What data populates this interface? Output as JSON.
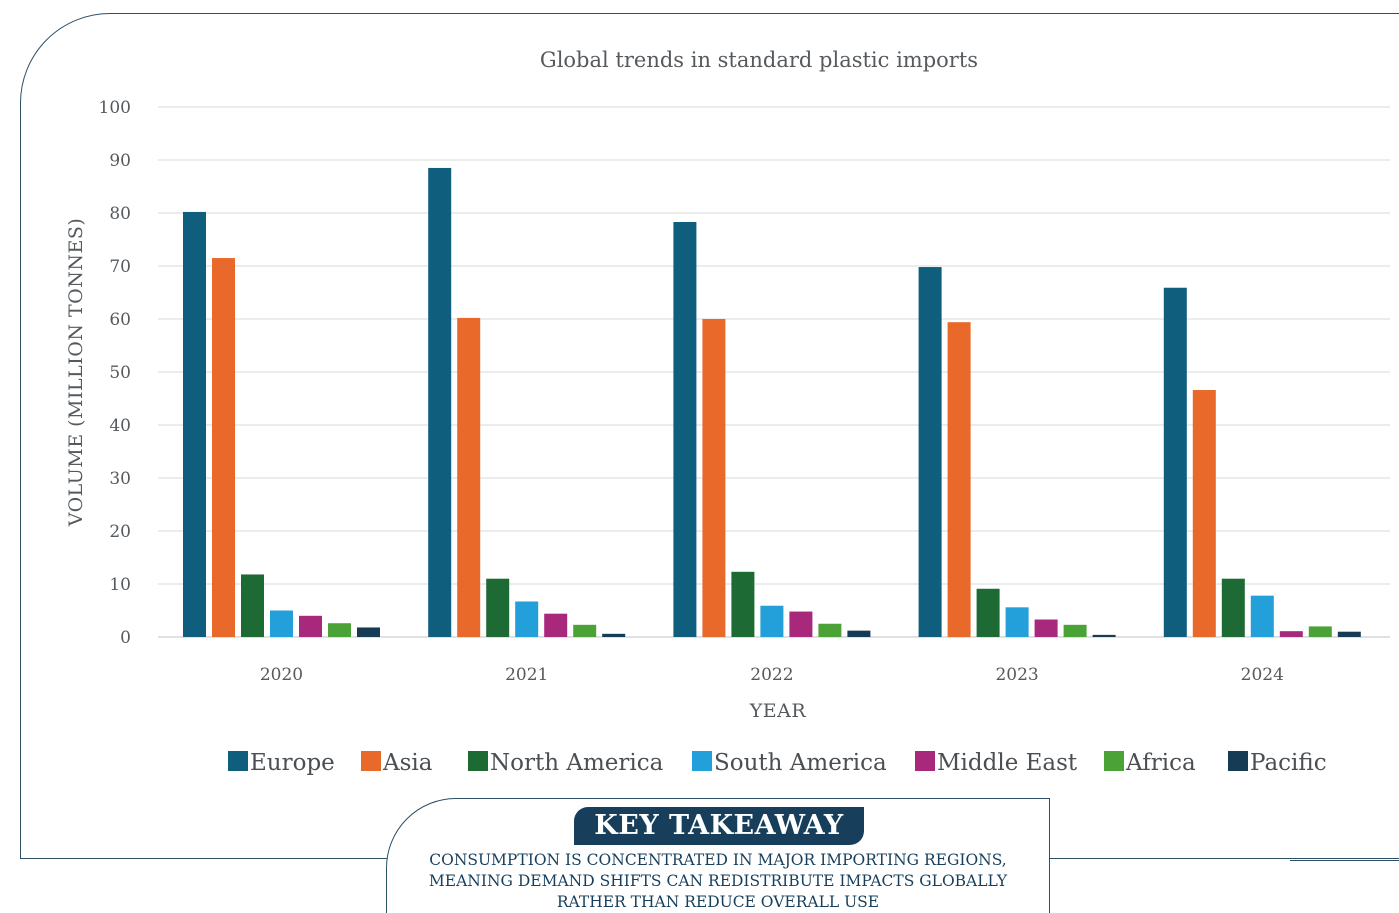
{
  "chart_data": {
    "type": "bar",
    "title": "Global trends in standard plastic imports",
    "xlabel": "YEAR",
    "ylabel": "VOLUME (MILLION TONNES)",
    "ylim": [
      0,
      100
    ],
    "yticks": [
      "0",
      "10",
      "20",
      "30",
      "40",
      "50",
      "60",
      "70",
      "80",
      "90",
      "100"
    ],
    "categories": [
      "2020",
      "2021",
      "2022",
      "2023",
      "2024"
    ],
    "grid": true,
    "legend_position": "bottom",
    "series": [
      {
        "name": "Europe",
        "color": "#0f5e7e",
        "values": [
          80.2,
          88.5,
          78.3,
          69.8,
          65.9
        ]
      },
      {
        "name": "Asia",
        "color": "#e8692a",
        "values": [
          71.5,
          60.2,
          60.0,
          59.4,
          46.6
        ]
      },
      {
        "name": "North America",
        "color": "#1d6a34",
        "values": [
          11.8,
          11.0,
          12.3,
          9.1,
          11.0
        ]
      },
      {
        "name": "South America",
        "color": "#239fd9",
        "values": [
          5.0,
          6.7,
          5.9,
          5.6,
          7.8
        ]
      },
      {
        "name": "Middle East",
        "color": "#a8287c",
        "values": [
          4.0,
          4.4,
          4.8,
          3.3,
          1.1
        ]
      },
      {
        "name": "Africa",
        "color": "#4ba337",
        "values": [
          2.6,
          2.3,
          2.5,
          2.3,
          2.0
        ]
      },
      {
        "name": "Pacific",
        "color": "#163b55",
        "values": [
          1.8,
          0.6,
          1.2,
          0.4,
          1.0
        ]
      }
    ]
  },
  "takeaway": {
    "heading": "KEY TAKEAWAY",
    "lines": [
      "CONSUMPTION IS CONCENTRATED IN MAJOR IMPORTING REGIONS,",
      "MEANING DEMAND SHIFTS CAN REDISTRIBUTE IMPACTS GLOBALLY",
      "RATHER THAN REDUCE OVERALL USE"
    ]
  }
}
